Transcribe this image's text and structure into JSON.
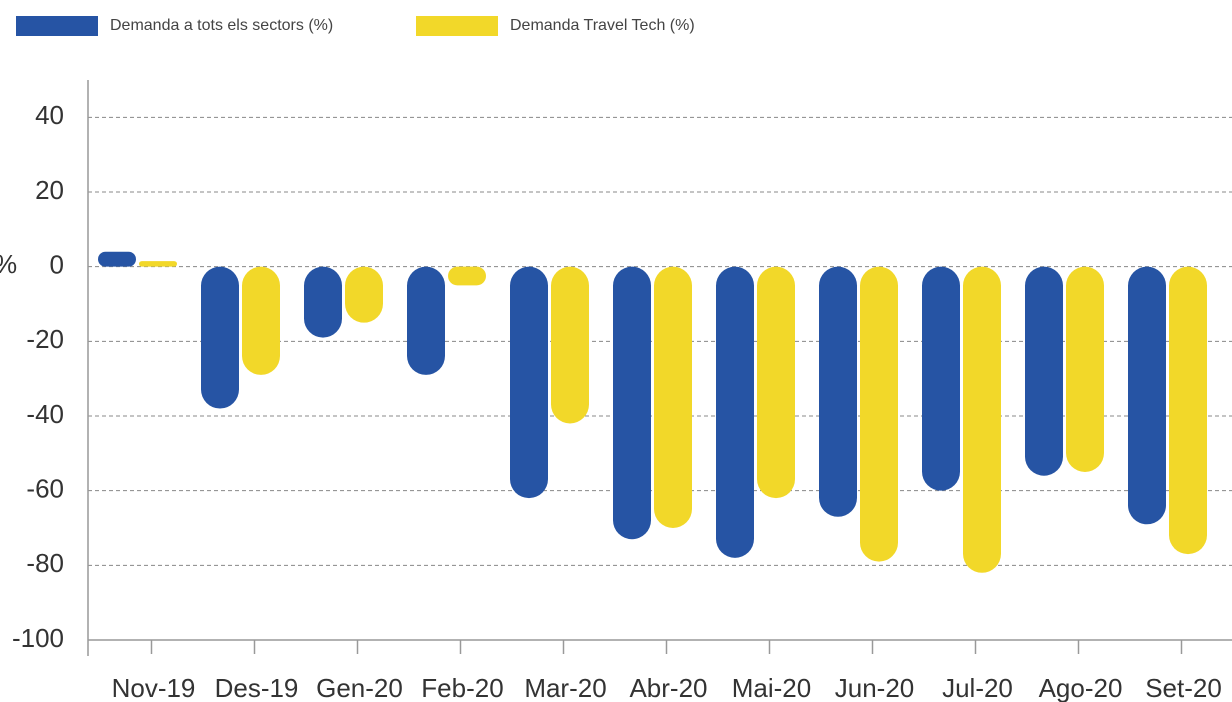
{
  "chart_data": {
    "type": "bar",
    "y_label": "%",
    "categories": [
      "Nov-19",
      "Des-19",
      "Gen-20",
      "Feb-20",
      "Mar-20",
      "Abr-20",
      "Mai-20",
      "Jun-20",
      "Jul-20",
      "Ago-20",
      "Set-20"
    ],
    "series": [
      {
        "name": "Demanda a tots els sectors (%)",
        "color": "#2654a4",
        "values": [
          4,
          -38,
          -19,
          -29,
          -62,
          -73,
          -78,
          -67,
          -60,
          -56,
          -69
        ]
      },
      {
        "name": "Demanda Travel Tech (%)",
        "color": "#f2d829",
        "values": [
          1.5,
          -29,
          -15,
          -5,
          -42,
          -70,
          -62,
          -79,
          -82,
          -55,
          -77
        ]
      }
    ],
    "ylim": [
      -100,
      50
    ],
    "yticks": [
      -100,
      -80,
      -60,
      -40,
      -20,
      0,
      20,
      40
    ],
    "grid": true,
    "legend": "top"
  }
}
